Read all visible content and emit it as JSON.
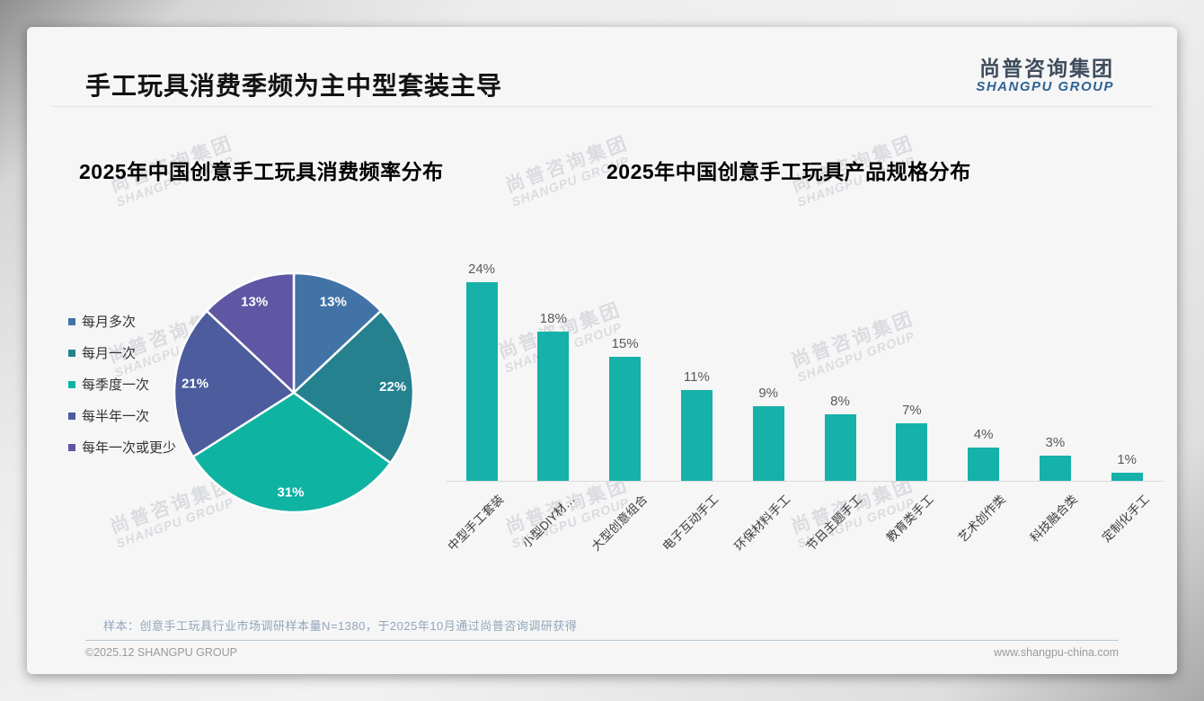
{
  "page": {
    "title": "手工玩具消费季频为主中型套装主导",
    "logo": {
      "cn": "尚普咨询集团",
      "en": "SHANGPU GROUP"
    },
    "watermark": {
      "cn": "尚普咨询集团",
      "en": "SHANGPU GROUP"
    },
    "footer": {
      "note": "样本：创意手工玩具行业市场调研样本量N=1380，于2025年10月通过尚普咨询调研获得",
      "copyright": "©2025.12 SHANGPU GROUP",
      "website": "www.shangpu-china.com"
    }
  },
  "chart_data": [
    {
      "type": "pie",
      "title": "2025年中国创意手工玩具消费频率分布",
      "categories": [
        "每月多次",
        "每月一次",
        "每季度一次",
        "每半年一次",
        "每年一次或更少"
      ],
      "values": [
        13,
        22,
        31,
        21,
        13
      ],
      "data_labels": [
        "13%",
        "22%",
        "31%",
        "21%",
        "13%"
      ],
      "colors": [
        "#4273a6",
        "#26818f",
        "#0fb3a2",
        "#4c5c9d",
        "#5f57a3"
      ],
      "legend_position": "left",
      "start_angle": "top",
      "direction": "clockwise"
    },
    {
      "type": "bar",
      "title": "2025年中国创意手工玩具产品规格分布",
      "categories": [
        "中型手工套装",
        "小型DIY材…",
        "大型创意组合",
        "电子互动手工",
        "环保材料手工",
        "节日主题手工",
        "教育类手工",
        "艺术创作类",
        "科技融合类",
        "定制化手工"
      ],
      "values": [
        24,
        18,
        15,
        11,
        9,
        8,
        7,
        4,
        3,
        1
      ],
      "value_labels": [
        "24%",
        "18%",
        "15%",
        "11%",
        "9%",
        "8%",
        "7%",
        "4%",
        "3%",
        "1%"
      ],
      "bar_color": "#16b1a8",
      "value_label_color": "#595959",
      "ylim": [
        0,
        26
      ],
      "grid": false,
      "xlabel": "",
      "ylabel": ""
    }
  ]
}
